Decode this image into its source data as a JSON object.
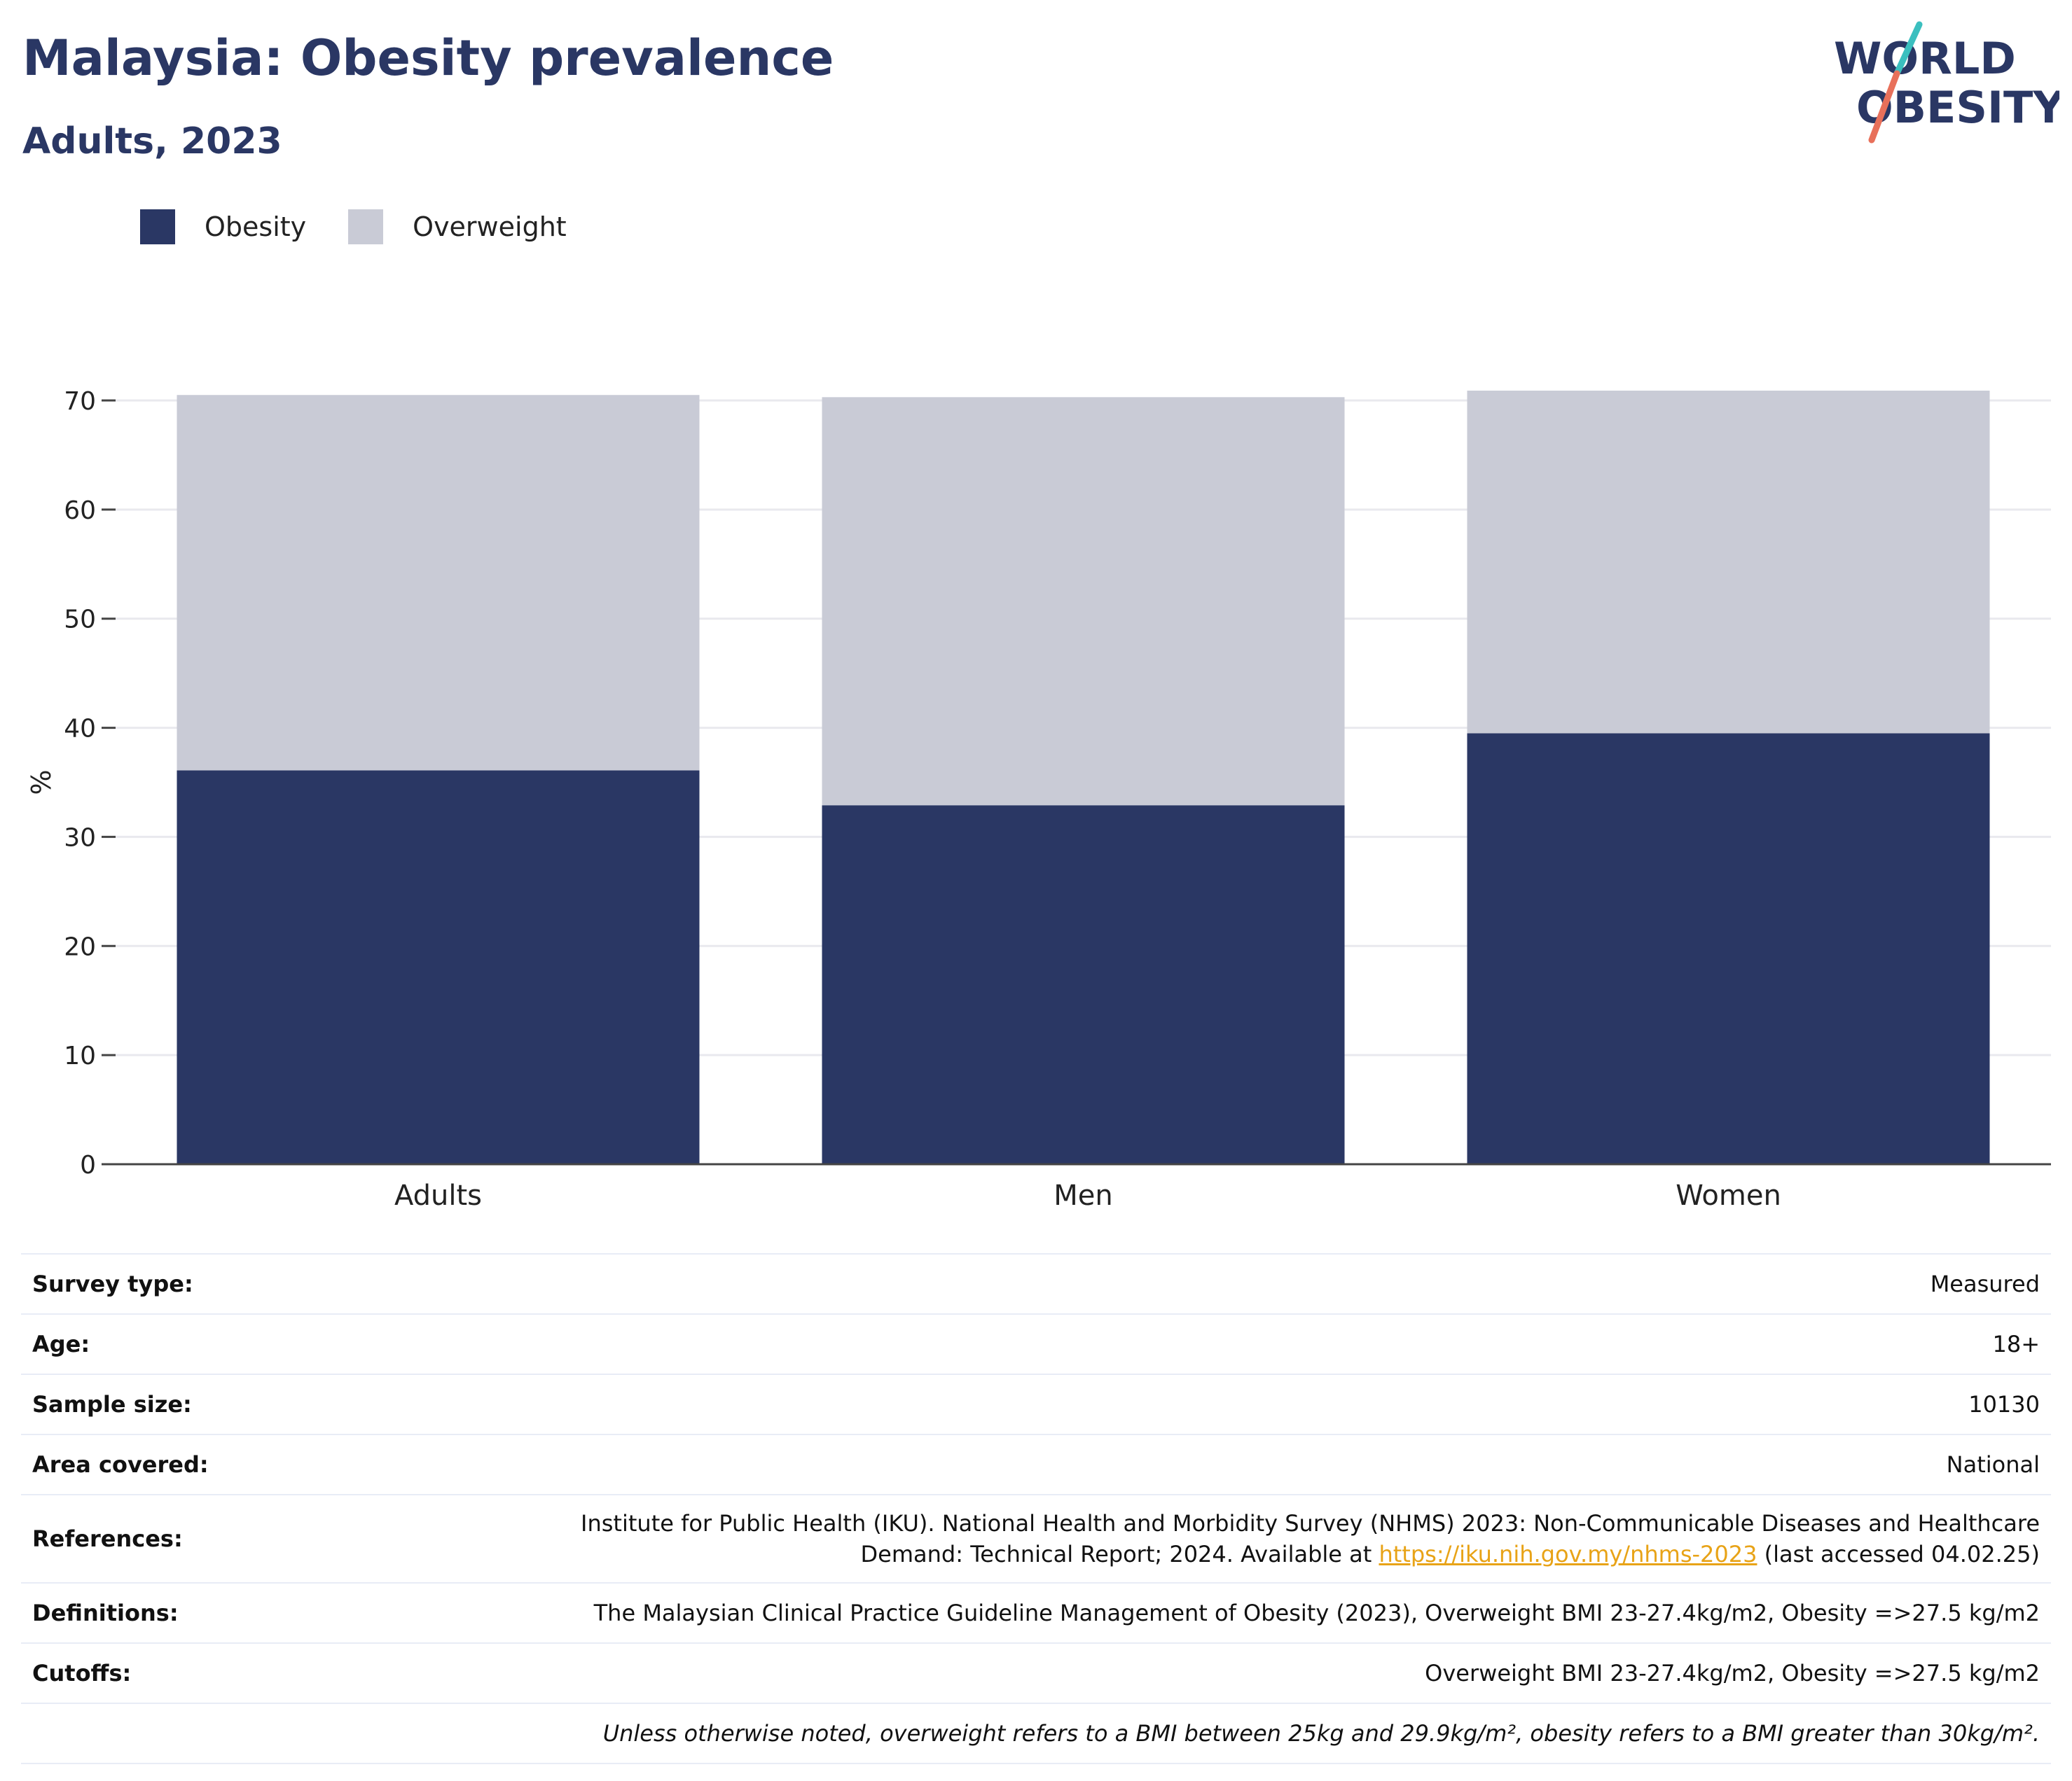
{
  "header": {
    "title": "Malaysia: Obesity prevalence",
    "subtitle": "Adults, 2023"
  },
  "logo": {
    "line1": "WORLD",
    "line2": "OBESITY",
    "colors": {
      "text": "#2a3764",
      "slash_top": "#3bbfbf",
      "slash_bottom": "#e8705a"
    }
  },
  "colors": {
    "obesity": "#2a3764",
    "overweight": "#c9cbd6",
    "grid": "#e9e9ee",
    "axis": "#444444"
  },
  "chart_data": {
    "type": "bar",
    "stacked": true,
    "categories": [
      "Adults",
      "Men",
      "Women"
    ],
    "series": [
      {
        "name": "Obesity",
        "values": [
          36.1,
          32.9,
          39.5
        ]
      },
      {
        "name": "Overweight",
        "values": [
          34.4,
          37.4,
          31.4
        ]
      }
    ],
    "title": "",
    "xlabel": "",
    "ylabel": "%",
    "ylim": [
      0,
      70
    ],
    "yticks": [
      0,
      10,
      20,
      30,
      40,
      50,
      60,
      70
    ],
    "grid": true,
    "legend_position": "top-left"
  },
  "meta": {
    "survey_type": {
      "label": "Survey type:",
      "value": "Measured"
    },
    "age": {
      "label": "Age:",
      "value": "18+"
    },
    "sample_size": {
      "label": "Sample size:",
      "value": "10130"
    },
    "area_covered": {
      "label": "Area covered:",
      "value": "National"
    },
    "references": {
      "label": "References:",
      "line1": "Institute for Public Health (IKU). National Health and Morbidity Survey (NHMS) 2023: Non-Communicable Diseases and Healthcare",
      "line2_pre": "Demand: Technical Report; 2024. Available at ",
      "link": "https://iku.nih.gov.my/nhms-2023",
      "line2_post": " (last accessed 04.02.25)"
    },
    "definitions": {
      "label": "Definitions:",
      "value": "The Malaysian Clinical Practice Guideline Management of Obesity (2023), Overweight BMI 23-27.4kg/m2, Obesity =>27.5 kg/m2"
    },
    "cutoffs": {
      "label": "Cutoffs:",
      "value": "Overweight BMI 23-27.4kg/m2, Obesity =>27.5 kg/m2"
    },
    "note": "Unless otherwise noted, overweight refers to a BMI between 25kg and 29.9kg/m², obesity refers to a BMI greater than 30kg/m²."
  }
}
